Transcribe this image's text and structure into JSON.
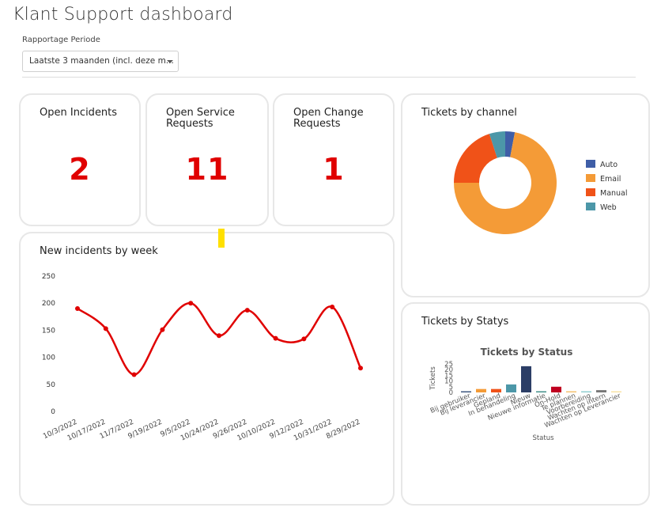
{
  "page": {
    "title": "Klant Support dashboard"
  },
  "filter": {
    "label": "Rapportage Periode",
    "selected": "Laatste 3 maanden (incl. deze m..."
  },
  "kpis": [
    {
      "title": "Open Incidents",
      "value": "2"
    },
    {
      "title": "Open Service\nRequests",
      "value": "11"
    },
    {
      "title": "Open Change\nRequests",
      "value": "1"
    }
  ],
  "channel": {
    "title": "Tickets by channel",
    "legend": [
      "Auto",
      "Email",
      "Manual",
      "Web"
    ]
  },
  "incidents": {
    "title": "New incidents by week"
  },
  "status": {
    "title": "Tickets by Statys"
  },
  "colors": {
    "kpi_value": "#e00000",
    "line": "#e00000",
    "auto": "#3f5ea7",
    "email": "#f49b37",
    "manual": "#f05218",
    "web": "#4c97a8"
  },
  "chart_data": [
    {
      "type": "pie",
      "title": "",
      "labels": [
        "Auto",
        "Email",
        "Manual",
        "Web"
      ],
      "values": [
        3,
        72,
        20,
        5
      ],
      "legend": "right",
      "colors": [
        "#3f5ea7",
        "#f49b37",
        "#f05218",
        "#4c97a8"
      ]
    },
    {
      "type": "line",
      "title": "",
      "categories": [
        "10/3/2022",
        "10/17/2022",
        "11/7/2022",
        "9/19/2022",
        "9/5/2022",
        "10/24/2022",
        "9/26/2022",
        "10/10/2022",
        "9/12/2022",
        "10/31/2022",
        "8/29/2022"
      ],
      "values": [
        190,
        153,
        68,
        151,
        200,
        140,
        187,
        135,
        134,
        193,
        80
      ],
      "ylim": [
        0,
        250
      ],
      "yticks": [
        0,
        50,
        100,
        150,
        200,
        250
      ],
      "grid": false
    },
    {
      "type": "bar",
      "title": "Tickets by Status",
      "xlabel": "Status",
      "ylabel": "Tickets",
      "categories": [
        "Bij gebruiker",
        "Bij leverancier",
        "Gepland",
        "In behandeling",
        "Nieuw",
        "Nieuwe informatie",
        "On-Hold",
        "Te plannen",
        "Voorbereiding",
        "Wachten op intern",
        "Wachten op Leverancier"
      ],
      "values": [
        1,
        3,
        3,
        7,
        23,
        1,
        5,
        1,
        1,
        2,
        1
      ],
      "colors": [
        "#35507a",
        "#f49b37",
        "#f05218",
        "#4c97a8",
        "#2c3e66",
        "#3c8c86",
        "#c00020",
        "#f5c06b",
        "#8ccdd0",
        "#777777",
        "#f9e2a0"
      ],
      "ylim": [
        0,
        25
      ],
      "yticks": [
        0,
        5,
        10,
        15,
        20,
        25
      ]
    }
  ]
}
